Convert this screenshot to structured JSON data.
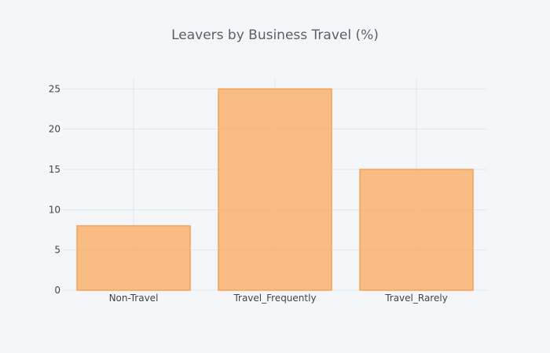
{
  "chart_data": {
    "type": "bar",
    "title": "Leavers by Business Travel (%)",
    "categories": [
      "Non-Travel",
      "Travel_Frequently",
      "Travel_Rarely"
    ],
    "values": [
      8,
      25,
      15
    ],
    "ylim": [
      0,
      26.3
    ],
    "yticks": [
      0,
      5,
      10,
      15,
      20,
      25
    ],
    "grid": true,
    "legend": "none",
    "colors": {
      "bar_fill": "#f9b26d",
      "bar_stroke": "#f4a25a",
      "background": "#f5f6fa"
    }
  }
}
